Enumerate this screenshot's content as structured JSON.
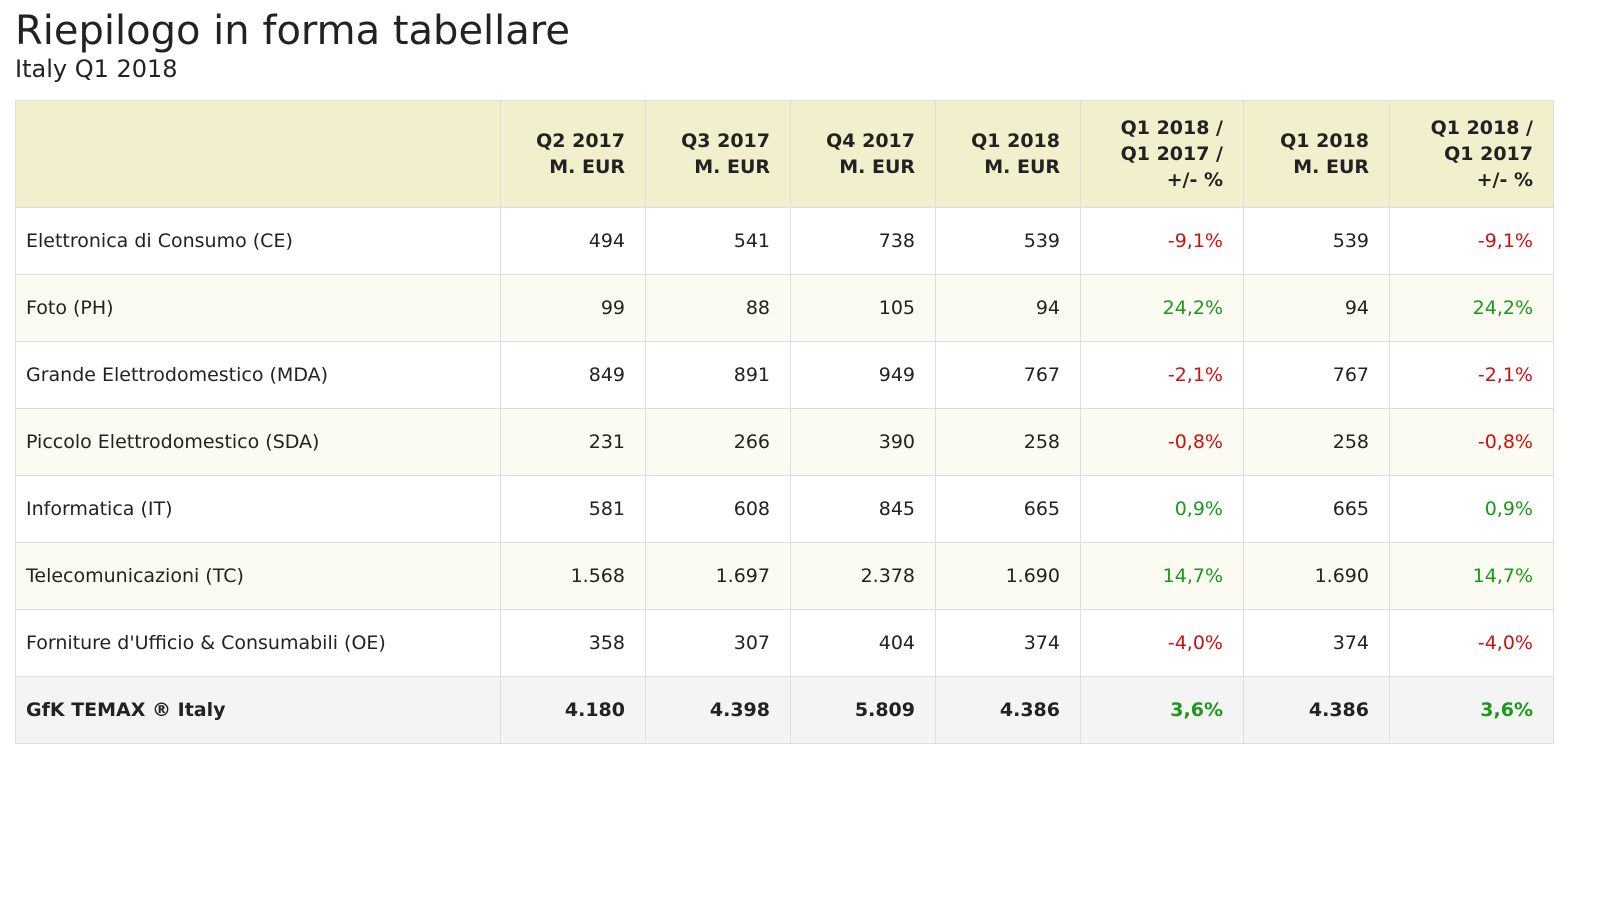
{
  "title": "Riepilogo in forma tabellare",
  "subtitle": "Italy Q1 2018",
  "colors": {
    "header_bg": "#f2f0cc",
    "negative": "#cc1111",
    "positive": "#1a9a1a",
    "alt_row": "#fbfbf1",
    "total_row": "#f4f4f4"
  },
  "columns": [
    {
      "lines": [
        ""
      ]
    },
    {
      "lines": [
        "Q2 2017",
        "M. EUR"
      ]
    },
    {
      "lines": [
        "Q3 2017",
        "M. EUR"
      ]
    },
    {
      "lines": [
        "Q4 2017",
        "M. EUR"
      ]
    },
    {
      "lines": [
        "Q1 2018",
        "M. EUR"
      ]
    },
    {
      "lines": [
        "Q1 2018 /",
        "Q1 2017 /",
        "+/- %"
      ]
    },
    {
      "lines": [
        "Q1 2018",
        "M. EUR"
      ]
    },
    {
      "lines": [
        "Q1 2018 /",
        "Q1 2017",
        "+/- %"
      ]
    }
  ],
  "rows": [
    {
      "category": "Elettronica di Consumo (CE)",
      "q2_2017": "494",
      "q3_2017": "541",
      "q4_2017": "738",
      "q1_2018": "539",
      "change": "-9,1%",
      "q1_2018_ytd": "539",
      "change_ytd": "-9,1%",
      "trend": "neg"
    },
    {
      "category": "Foto (PH)",
      "q2_2017": "99",
      "q3_2017": "88",
      "q4_2017": "105",
      "q1_2018": "94",
      "change": "24,2%",
      "q1_2018_ytd": "94",
      "change_ytd": "24,2%",
      "trend": "pos"
    },
    {
      "category": "Grande Elettrodomestico (MDA)",
      "q2_2017": "849",
      "q3_2017": "891",
      "q4_2017": "949",
      "q1_2018": "767",
      "change": "-2,1%",
      "q1_2018_ytd": "767",
      "change_ytd": "-2,1%",
      "trend": "neg"
    },
    {
      "category": "Piccolo Elettrodomestico (SDA)",
      "q2_2017": "231",
      "q3_2017": "266",
      "q4_2017": "390",
      "q1_2018": "258",
      "change": "-0,8%",
      "q1_2018_ytd": "258",
      "change_ytd": "-0,8%",
      "trend": "neg"
    },
    {
      "category": "Informatica (IT)",
      "q2_2017": "581",
      "q3_2017": "608",
      "q4_2017": "845",
      "q1_2018": "665",
      "change": "0,9%",
      "q1_2018_ytd": "665",
      "change_ytd": "0,9%",
      "trend": "pos"
    },
    {
      "category": "Telecomunicazioni (TC)",
      "q2_2017": "1.568",
      "q3_2017": "1.697",
      "q4_2017": "2.378",
      "q1_2018": "1.690",
      "change": "14,7%",
      "q1_2018_ytd": "1.690",
      "change_ytd": "14,7%",
      "trend": "pos"
    },
    {
      "category": "Forniture d'Ufficio & Consumabili (OE)",
      "q2_2017": "358",
      "q3_2017": "307",
      "q4_2017": "404",
      "q1_2018": "374",
      "change": "-4,0%",
      "q1_2018_ytd": "374",
      "change_ytd": "-4,0%",
      "trend": "neg"
    }
  ],
  "total": {
    "category": "GfK TEMAX ® Italy",
    "q2_2017": "4.180",
    "q3_2017": "4.398",
    "q4_2017": "5.809",
    "q1_2018": "4.386",
    "change": "3,6%",
    "q1_2018_ytd": "4.386",
    "change_ytd": "3,6%",
    "trend": "pos"
  }
}
